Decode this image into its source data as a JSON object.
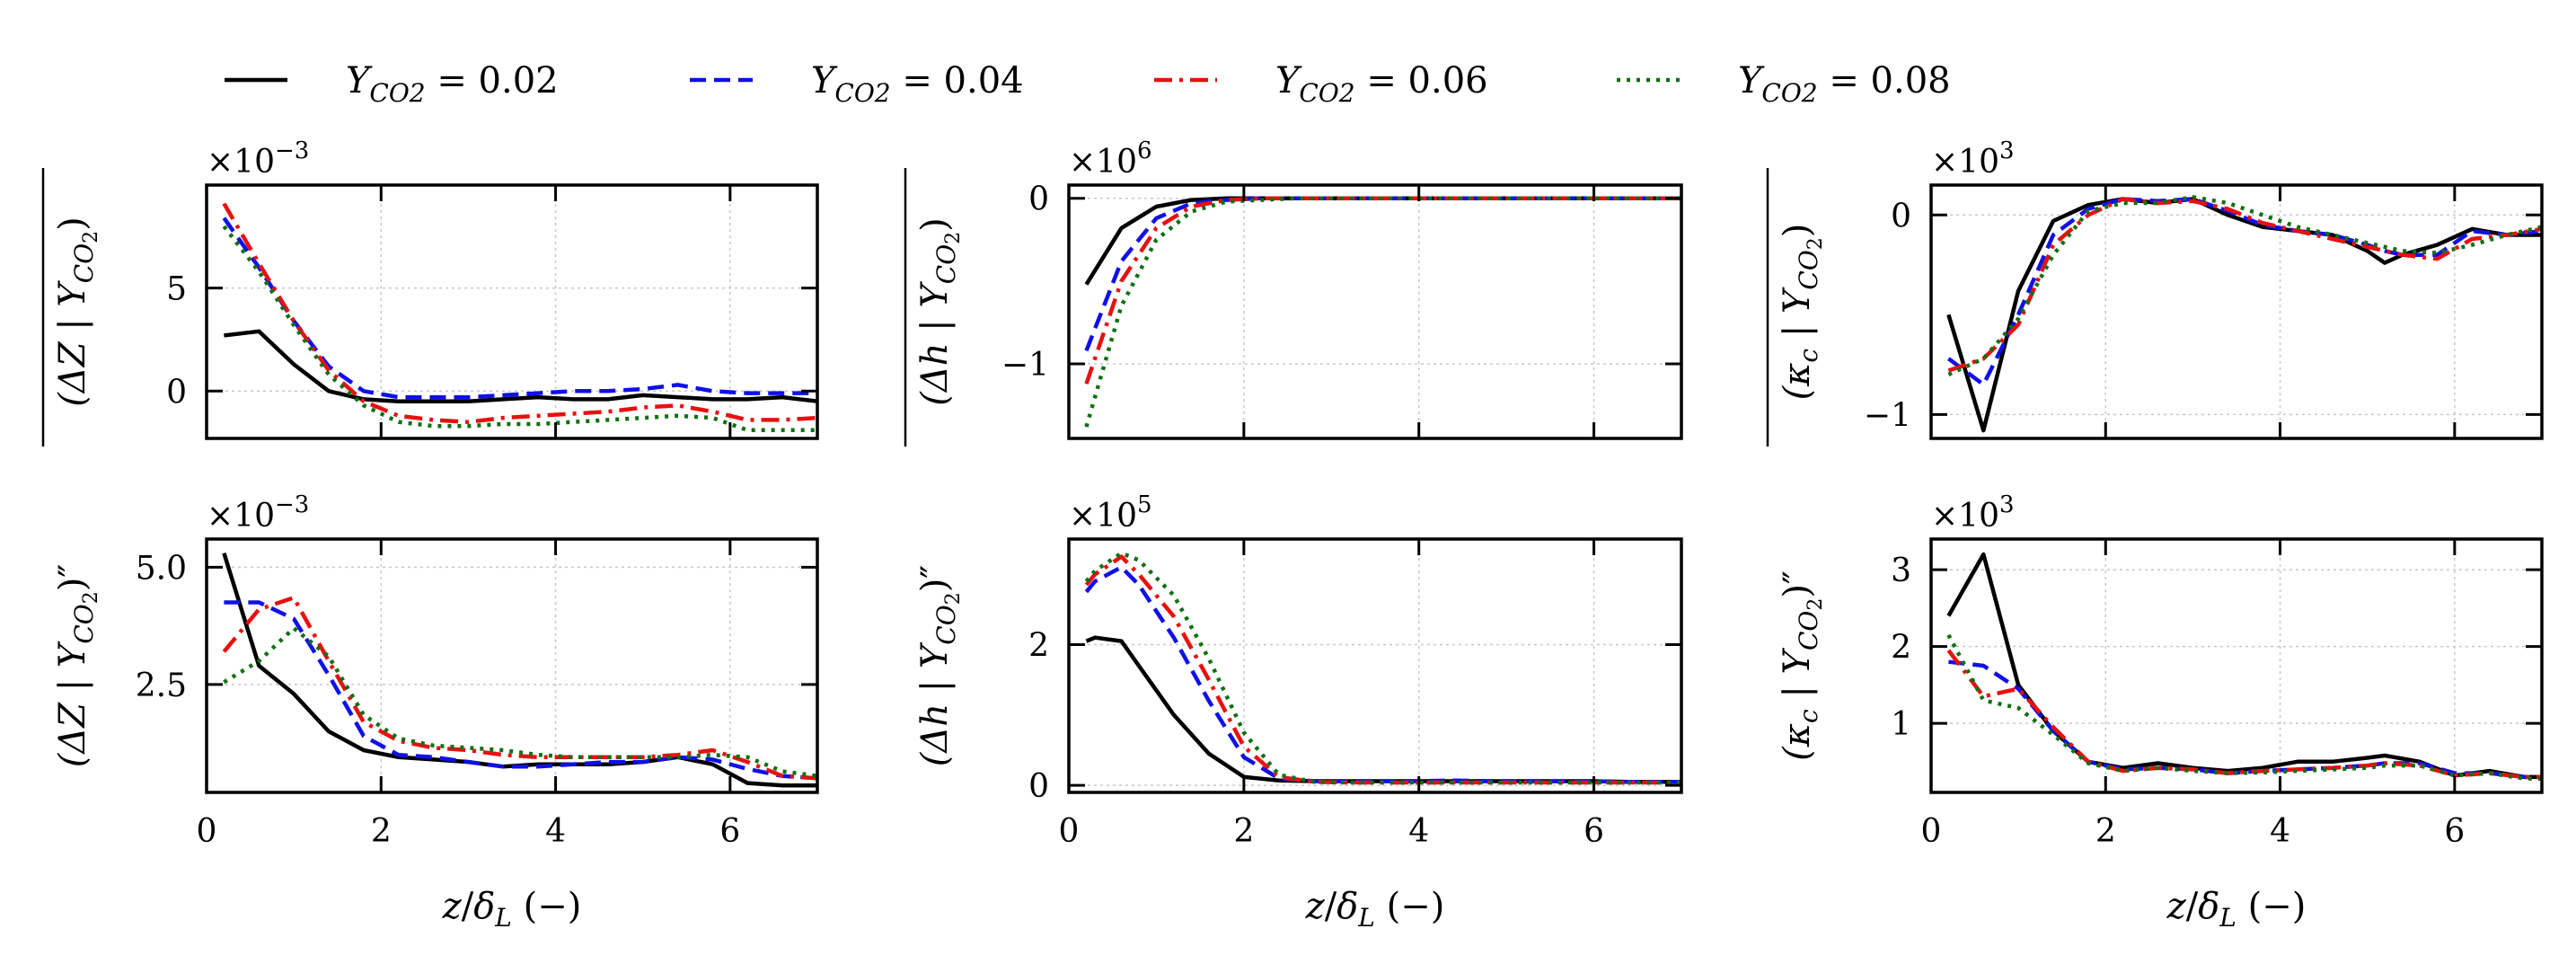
{
  "legend": [
    {
      "label": "Y_{CO2} = 0.02",
      "color": "#000000",
      "dash": "solid"
    },
    {
      "label": "Y_{CO2} = 0.04",
      "color": "#1010e8",
      "dash": "dashed"
    },
    {
      "label": "Y_{CO2} = 0.06",
      "color": "#e81010",
      "dash": "dashdot"
    },
    {
      "label": "Y_{CO2} = 0.08",
      "color": "#107010",
      "dash": "dotted"
    }
  ],
  "xlabel": "z/δ_L (−)",
  "chart_data": [
    {
      "type": "line",
      "id": "dz-mean",
      "ylabel": "(ΔZ | Y_CO2) mean",
      "ylabel_main": "(ΔZ | Y",
      "ylabel_sub": "CO",
      "ylabel_sub2": "2",
      "ylabel_end": ")",
      "ylabel_mark": "overline",
      "multiplier": "×10",
      "multiplier_exp": "−3",
      "xlim": [
        0,
        7
      ],
      "ylim": [
        -2.3,
        10.0
      ],
      "xticks": [
        0,
        2,
        4,
        6
      ],
      "yticks": [
        0,
        5
      ],
      "ytick_labels": [
        "0",
        "5"
      ],
      "x": [
        0.2,
        0.6,
        1.0,
        1.4,
        1.8,
        2.2,
        2.6,
        3.0,
        3.4,
        3.8,
        4.2,
        4.6,
        5.0,
        5.4,
        5.8,
        6.2,
        6.6,
        7.0
      ],
      "series": [
        {
          "values": [
            2.7,
            2.9,
            1.3,
            0.0,
            -0.4,
            -0.5,
            -0.5,
            -0.5,
            -0.4,
            -0.3,
            -0.4,
            -0.4,
            -0.2,
            -0.3,
            -0.4,
            -0.4,
            -0.3,
            -0.5
          ]
        },
        {
          "values": [
            8.4,
            6.0,
            3.4,
            1.2,
            0.0,
            -0.3,
            -0.3,
            -0.3,
            -0.2,
            -0.1,
            0.0,
            0.0,
            0.1,
            0.3,
            0.0,
            -0.1,
            -0.1,
            -0.1
          ]
        },
        {
          "values": [
            9.1,
            6.2,
            3.4,
            1.0,
            -0.5,
            -1.2,
            -1.4,
            -1.5,
            -1.3,
            -1.2,
            -1.1,
            -1.0,
            -0.8,
            -0.7,
            -1.0,
            -1.4,
            -1.4,
            -1.3
          ]
        },
        {
          "values": [
            8.0,
            5.8,
            3.2,
            0.8,
            -0.7,
            -1.5,
            -1.7,
            -1.7,
            -1.6,
            -1.6,
            -1.5,
            -1.4,
            -1.3,
            -1.2,
            -1.3,
            -1.9,
            -1.9,
            -1.9
          ]
        }
      ]
    },
    {
      "type": "line",
      "id": "dh-mean",
      "ylabel": "(Δh | Y_CO2) mean",
      "ylabel_main": "(Δh | Y",
      "ylabel_sub": "CO",
      "ylabel_sub2": "2",
      "ylabel_end": ")",
      "ylabel_mark": "overline",
      "multiplier": "×10",
      "multiplier_exp": "6",
      "xlim": [
        0,
        7
      ],
      "ylim": [
        -1.45,
        0.08
      ],
      "xticks": [
        0,
        2,
        4,
        6
      ],
      "yticks": [
        -1,
        0
      ],
      "ytick_labels": [
        "−1",
        "0"
      ],
      "x": [
        0.2,
        0.6,
        1.0,
        1.4,
        1.8,
        2.2,
        2.6,
        3.0,
        3.4,
        3.8,
        4.2,
        4.6,
        5.0,
        5.4,
        5.8,
        6.2,
        6.6,
        7.0
      ],
      "series": [
        {
          "values": [
            -0.52,
            -0.18,
            -0.05,
            -0.01,
            0.0,
            0.0,
            0.0,
            0.0,
            0.0,
            0.0,
            0.0,
            0.0,
            0.0,
            0.0,
            0.0,
            0.0,
            0.0,
            0.0
          ]
        },
        {
          "values": [
            -0.92,
            -0.38,
            -0.12,
            -0.03,
            -0.01,
            0.0,
            0.0,
            0.0,
            0.0,
            0.0,
            0.0,
            0.0,
            0.0,
            0.0,
            0.0,
            0.0,
            0.0,
            0.0
          ]
        },
        {
          "values": [
            -1.12,
            -0.5,
            -0.18,
            -0.05,
            -0.01,
            0.0,
            0.0,
            0.0,
            0.0,
            0.0,
            0.0,
            0.0,
            0.0,
            0.0,
            0.0,
            0.0,
            0.0,
            0.0
          ]
        },
        {
          "values": [
            -1.38,
            -0.65,
            -0.25,
            -0.08,
            -0.02,
            -0.01,
            0.0,
            0.0,
            0.0,
            0.0,
            0.0,
            0.0,
            0.0,
            0.0,
            0.0,
            0.0,
            0.0,
            0.0
          ]
        }
      ]
    },
    {
      "type": "line",
      "id": "kc-mean",
      "ylabel": "(κ_c | Y_CO2) mean",
      "ylabel_main": "(κ",
      "ylabel_k_sub": "c",
      "ylabel_mid": " | Y",
      "ylabel_sub": "CO",
      "ylabel_sub2": "2",
      "ylabel_end": ")",
      "ylabel_mark": "overline",
      "multiplier": "×10",
      "multiplier_exp": "3",
      "xlim": [
        0,
        7
      ],
      "ylim": [
        -1.12,
        0.15
      ],
      "xticks": [
        0,
        2,
        4,
        6
      ],
      "yticks": [
        -1,
        0
      ],
      "ytick_labels": [
        "−1",
        "0"
      ],
      "x": [
        0.2,
        0.6,
        1.0,
        1.4,
        1.8,
        2.2,
        2.6,
        3.0,
        3.4,
        3.8,
        4.2,
        4.6,
        5.0,
        5.2,
        5.4,
        5.8,
        6.2,
        6.6,
        7.0
      ],
      "series": [
        {
          "values": [
            -0.5,
            -1.08,
            -0.38,
            -0.03,
            0.05,
            0.08,
            0.06,
            0.08,
            0.0,
            -0.06,
            -0.08,
            -0.1,
            -0.18,
            -0.24,
            -0.2,
            -0.15,
            -0.07,
            -0.1,
            -0.1
          ]
        },
        {
          "values": [
            -0.72,
            -0.85,
            -0.5,
            -0.1,
            0.03,
            0.08,
            0.07,
            0.08,
            0.02,
            -0.05,
            -0.08,
            -0.1,
            -0.15,
            -0.18,
            -0.2,
            -0.2,
            -0.08,
            -0.1,
            -0.08
          ]
        },
        {
          "values": [
            -0.78,
            -0.72,
            -0.55,
            -0.15,
            0.0,
            0.08,
            0.06,
            0.07,
            0.03,
            -0.04,
            -0.08,
            -0.12,
            -0.16,
            -0.18,
            -0.2,
            -0.22,
            -0.12,
            -0.1,
            -0.07
          ]
        },
        {
          "values": [
            -0.8,
            -0.72,
            -0.52,
            -0.2,
            0.02,
            0.06,
            0.06,
            0.09,
            0.06,
            0.0,
            -0.06,
            -0.1,
            -0.14,
            -0.16,
            -0.18,
            -0.19,
            -0.15,
            -0.1,
            -0.06
          ]
        }
      ]
    },
    {
      "type": "line",
      "id": "dz-fluct",
      "ylabel": "(ΔZ | Y_CO2)''",
      "ylabel_main": "(ΔZ | Y",
      "ylabel_sub": "CO",
      "ylabel_sub2": "2",
      "ylabel_end": ")″",
      "ylabel_mark": "prime",
      "multiplier": "×10",
      "multiplier_exp": "−3",
      "xlim": [
        0,
        7
      ],
      "ylim": [
        0.2,
        5.6
      ],
      "xticks": [
        0,
        2,
        4,
        6
      ],
      "yticks": [
        2.5,
        5.0
      ],
      "ytick_labels": [
        "2.5",
        "5.0"
      ],
      "xtick_labels": [
        "0",
        "2",
        "4",
        "6"
      ],
      "x": [
        0.2,
        0.6,
        1.0,
        1.4,
        1.8,
        2.2,
        2.6,
        3.0,
        3.4,
        3.8,
        4.2,
        4.6,
        5.0,
        5.4,
        5.8,
        6.2,
        6.6,
        7.0
      ],
      "series": [
        {
          "values": [
            5.3,
            2.9,
            2.3,
            1.5,
            1.1,
            0.95,
            0.9,
            0.85,
            0.75,
            0.8,
            0.8,
            0.8,
            0.85,
            0.95,
            0.8,
            0.4,
            0.35,
            0.35
          ]
        },
        {
          "values": [
            4.25,
            4.25,
            3.9,
            2.7,
            1.4,
            1.0,
            0.95,
            0.85,
            0.75,
            0.75,
            0.8,
            0.85,
            0.85,
            0.95,
            0.9,
            0.7,
            0.55,
            0.5
          ]
        },
        {
          "values": [
            3.2,
            4.1,
            4.35,
            3.0,
            1.7,
            1.3,
            1.15,
            1.1,
            1.0,
            0.95,
            0.95,
            0.95,
            0.95,
            1.0,
            1.1,
            0.85,
            0.55,
            0.5
          ]
        },
        {
          "values": [
            2.55,
            3.0,
            3.7,
            3.1,
            1.85,
            1.35,
            1.2,
            1.15,
            1.1,
            1.0,
            0.95,
            0.95,
            0.95,
            0.95,
            1.0,
            0.95,
            0.65,
            0.55
          ]
        }
      ]
    },
    {
      "type": "line",
      "id": "dh-fluct",
      "ylabel": "(Δh | Y_CO2)''",
      "ylabel_main": "(Δh | Y",
      "ylabel_sub": "CO",
      "ylabel_sub2": "2",
      "ylabel_end": ")″",
      "ylabel_mark": "prime",
      "multiplier": "×10",
      "multiplier_exp": "5",
      "xlim": [
        0,
        7
      ],
      "ylim": [
        -0.1,
        3.5
      ],
      "xticks": [
        0,
        2,
        4,
        6
      ],
      "yticks": [
        0,
        2
      ],
      "ytick_labels": [
        "0",
        "2"
      ],
      "xtick_labels": [
        "0",
        "2",
        "4",
        "6"
      ],
      "x": [
        0.2,
        0.3,
        0.6,
        0.8,
        1.2,
        1.6,
        2.0,
        2.4,
        2.8,
        3.2,
        3.6,
        4.0,
        4.4,
        4.8,
        5.2,
        5.6,
        6.0,
        6.4,
        7.0
      ],
      "series": [
        {
          "values": [
            2.05,
            2.1,
            2.05,
            1.7,
            1.0,
            0.45,
            0.12,
            0.07,
            0.06,
            0.06,
            0.06,
            0.06,
            0.06,
            0.06,
            0.06,
            0.06,
            0.06,
            0.05,
            0.05
          ]
        },
        {
          "values": [
            2.75,
            2.9,
            3.1,
            2.85,
            2.1,
            1.2,
            0.4,
            0.1,
            0.06,
            0.06,
            0.06,
            0.06,
            0.07,
            0.06,
            0.06,
            0.06,
            0.06,
            0.05,
            0.05
          ]
        },
        {
          "values": [
            2.85,
            3.0,
            3.25,
            3.0,
            2.4,
            1.5,
            0.55,
            0.12,
            0.05,
            0.04,
            0.04,
            0.04,
            0.04,
            0.04,
            0.04,
            0.04,
            0.04,
            0.04,
            0.04
          ]
        },
        {
          "values": [
            2.9,
            3.05,
            3.3,
            3.2,
            2.7,
            1.8,
            0.75,
            0.15,
            0.05,
            0.04,
            0.04,
            0.04,
            0.04,
            0.04,
            0.04,
            0.04,
            0.04,
            0.04,
            0.04
          ]
        }
      ]
    },
    {
      "type": "line",
      "id": "kc-fluct",
      "ylabel": "(κ_c | Y_CO2)''",
      "ylabel_main": "(κ",
      "ylabel_k_sub": "c",
      "ylabel_mid": " | Y",
      "ylabel_sub": "CO",
      "ylabel_sub2": "2",
      "ylabel_end": ")″",
      "ylabel_mark": "prime",
      "multiplier": "×10",
      "multiplier_exp": "3",
      "xlim": [
        0,
        7
      ],
      "ylim": [
        0.1,
        3.4
      ],
      "xticks": [
        0,
        2,
        4,
        6
      ],
      "yticks": [
        1,
        2,
        3
      ],
      "ytick_labels": [
        "1",
        "2",
        "3"
      ],
      "xtick_labels": [
        "0",
        "2",
        "4",
        "6"
      ],
      "x": [
        0.2,
        0.6,
        1.0,
        1.4,
        1.8,
        2.2,
        2.6,
        3.0,
        3.4,
        3.8,
        4.2,
        4.6,
        5.0,
        5.2,
        5.6,
        6.0,
        6.4,
        6.8,
        7.0
      ],
      "series": [
        {
          "values": [
            2.4,
            3.2,
            1.5,
            0.9,
            0.5,
            0.42,
            0.48,
            0.42,
            0.38,
            0.42,
            0.5,
            0.5,
            0.55,
            0.58,
            0.5,
            0.32,
            0.38,
            0.3,
            0.3
          ]
        },
        {
          "values": [
            1.8,
            1.75,
            1.45,
            0.9,
            0.5,
            0.4,
            0.42,
            0.4,
            0.35,
            0.38,
            0.4,
            0.42,
            0.45,
            0.48,
            0.48,
            0.35,
            0.35,
            0.3,
            0.3
          ]
        },
        {
          "values": [
            1.95,
            1.35,
            1.45,
            0.95,
            0.5,
            0.38,
            0.42,
            0.4,
            0.35,
            0.38,
            0.4,
            0.42,
            0.45,
            0.48,
            0.45,
            0.32,
            0.35,
            0.3,
            0.3
          ]
        },
        {
          "values": [
            2.15,
            1.3,
            1.2,
            0.85,
            0.48,
            0.38,
            0.42,
            0.38,
            0.35,
            0.36,
            0.38,
            0.4,
            0.42,
            0.45,
            0.45,
            0.32,
            0.35,
            0.28,
            0.28
          ]
        }
      ]
    }
  ]
}
